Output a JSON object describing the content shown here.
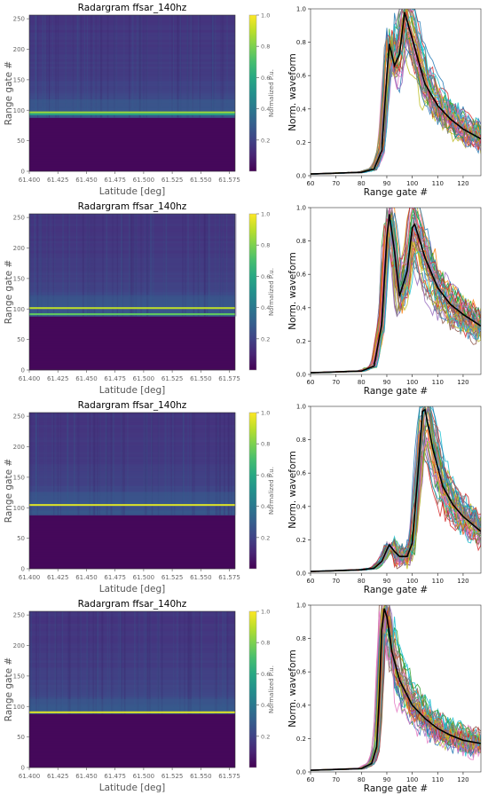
{
  "chart_data": [
    {
      "type": "heatmap",
      "title": "Radargram ffsar_140hz",
      "xlabel": "Latitude [deg]",
      "ylabel": "Range gate #",
      "xlim": [
        61.4,
        61.58
      ],
      "ylim": [
        0,
        256
      ],
      "xticks": [
        "61.400",
        "61.425",
        "61.450",
        "61.475",
        "61.500",
        "61.525",
        "61.550",
        "61.575"
      ],
      "yticks": [
        "0",
        "50",
        "100",
        "150",
        "200",
        "250"
      ],
      "colorbar": {
        "label": "Normalized P.u.",
        "ticks": [
          "0.2",
          "0.4",
          "0.6",
          "0.8",
          "1.0"
        ]
      },
      "surface_bands": [
        {
          "gate": 96,
          "intensity": 0.85
        },
        {
          "gate": 93,
          "intensity": 0.6
        }
      ],
      "floor_gate": 88
    },
    {
      "type": "line",
      "xlabel": "Range gate #",
      "ylabel": "Norm. waveform",
      "xlim": [
        60,
        127
      ],
      "ylim": [
        0,
        1.0
      ],
      "xticks": [
        "60",
        "70",
        "80",
        "90",
        "100",
        "110",
        "120"
      ],
      "yticks": [
        "0.0",
        "0.2",
        "0.4",
        "0.6",
        "0.8",
        "1.0"
      ],
      "mean_waveform": {
        "x": [
          60,
          80,
          85,
          88,
          90,
          91,
          93,
          95,
          97,
          100,
          105,
          110,
          115,
          120,
          127
        ],
        "y": [
          0.01,
          0.02,
          0.04,
          0.15,
          0.6,
          0.79,
          0.66,
          0.73,
          0.98,
          0.82,
          0.55,
          0.42,
          0.34,
          0.28,
          0.22
        ]
      }
    },
    {
      "type": "heatmap",
      "title": "Radargram ffsar_140hz",
      "xlabel": "Latitude [deg]",
      "ylabel": "Range gate #",
      "xlim": [
        61.4,
        61.58
      ],
      "ylim": [
        0,
        256
      ],
      "xticks": [
        "61.400",
        "61.425",
        "61.450",
        "61.475",
        "61.500",
        "61.525",
        "61.550",
        "61.575"
      ],
      "yticks": [
        "0",
        "50",
        "100",
        "150",
        "200",
        "250"
      ],
      "colorbar": {
        "label": "Normalized P.u.",
        "ticks": [
          "0.2",
          "0.4",
          "0.6",
          "0.8",
          "1.0"
        ]
      },
      "surface_bands": [
        {
          "gate": 101,
          "intensity": 0.9
        },
        {
          "gate": 91,
          "intensity": 0.75
        }
      ],
      "floor_gate": 88
    },
    {
      "type": "line",
      "xlabel": "Range gate #",
      "ylabel": "Norm. waveform",
      "xlim": [
        60,
        127
      ],
      "ylim": [
        0,
        1.0
      ],
      "xticks": [
        "60",
        "70",
        "80",
        "90",
        "100",
        "110",
        "120"
      ],
      "yticks": [
        "0.0",
        "0.2",
        "0.4",
        "0.6",
        "0.8",
        "1.0"
      ],
      "mean_waveform": {
        "x": [
          60,
          80,
          85,
          88,
          90,
          91,
          93,
          95,
          98,
          100,
          101,
          105,
          110,
          115,
          120,
          127
        ],
        "y": [
          0.01,
          0.02,
          0.05,
          0.3,
          0.82,
          0.96,
          0.74,
          0.47,
          0.62,
          0.88,
          0.9,
          0.7,
          0.52,
          0.42,
          0.36,
          0.29
        ]
      }
    },
    {
      "type": "heatmap",
      "title": "Radargram ffsar_140hz",
      "xlabel": "Latitude [deg]",
      "ylabel": "Range gate #",
      "xlim": [
        61.4,
        61.58
      ],
      "ylim": [
        0,
        256
      ],
      "xticks": [
        "61.400",
        "61.425",
        "61.450",
        "61.475",
        "61.500",
        "61.525",
        "61.550",
        "61.575"
      ],
      "yticks": [
        "0",
        "50",
        "100",
        "150",
        "200",
        "250"
      ],
      "colorbar": {
        "label": "Normalized P.u.",
        "ticks": [
          "0.2",
          "0.4",
          "0.6",
          "0.8",
          "1.0"
        ]
      },
      "surface_bands": [
        {
          "gate": 104,
          "intensity": 0.95
        }
      ],
      "floor_gate": 88
    },
    {
      "type": "line",
      "xlabel": "Range gate #",
      "ylabel": "Norm. waveform",
      "xlim": [
        60,
        127
      ],
      "ylim": [
        0,
        1.0
      ],
      "xticks": [
        "60",
        "70",
        "80",
        "90",
        "100",
        "110",
        "120"
      ],
      "yticks": [
        "0.0",
        "0.2",
        "0.4",
        "0.6",
        "0.8",
        "1.0"
      ],
      "mean_waveform": {
        "x": [
          60,
          80,
          85,
          88,
          90,
          91,
          93,
          95,
          98,
          100,
          102,
          104,
          105,
          108,
          112,
          116,
          120,
          127
        ],
        "y": [
          0.01,
          0.02,
          0.03,
          0.07,
          0.14,
          0.17,
          0.13,
          0.1,
          0.1,
          0.18,
          0.55,
          0.97,
          0.98,
          0.75,
          0.52,
          0.41,
          0.34,
          0.25
        ]
      }
    },
    {
      "type": "heatmap",
      "title": "Radargram ffsar_140hz",
      "xlabel": "Latitude [deg]",
      "ylabel": "Range gate #",
      "xlim": [
        61.4,
        61.58
      ],
      "ylim": [
        0,
        256
      ],
      "xticks": [
        "61.400",
        "61.425",
        "61.450",
        "61.475",
        "61.500",
        "61.525",
        "61.550",
        "61.575"
      ],
      "yticks": [
        "0",
        "50",
        "100",
        "150",
        "200",
        "250"
      ],
      "colorbar": {
        "label": "Normalized P.u.",
        "ticks": [
          "0.2",
          "0.4",
          "0.6",
          "0.8",
          "1.0"
        ]
      },
      "surface_bands": [
        {
          "gate": 90,
          "intensity": 0.95
        }
      ],
      "floor_gate": 88
    },
    {
      "type": "line",
      "xlabel": "Range gate #",
      "ylabel": "Norm. waveform",
      "xlim": [
        60,
        127
      ],
      "ylim": [
        0,
        1.0
      ],
      "xticks": [
        "60",
        "70",
        "80",
        "90",
        "100",
        "110",
        "120"
      ],
      "yticks": [
        "0.0",
        "0.2",
        "0.4",
        "0.6",
        "0.8",
        "1.0"
      ],
      "mean_waveform": {
        "x": [
          60,
          80,
          84,
          86,
          87,
          88,
          89,
          90,
          92,
          95,
          100,
          105,
          110,
          115,
          120,
          127
        ],
        "y": [
          0.01,
          0.02,
          0.05,
          0.15,
          0.45,
          0.85,
          0.98,
          0.93,
          0.72,
          0.55,
          0.4,
          0.32,
          0.26,
          0.22,
          0.19,
          0.17
        ]
      }
    }
  ]
}
